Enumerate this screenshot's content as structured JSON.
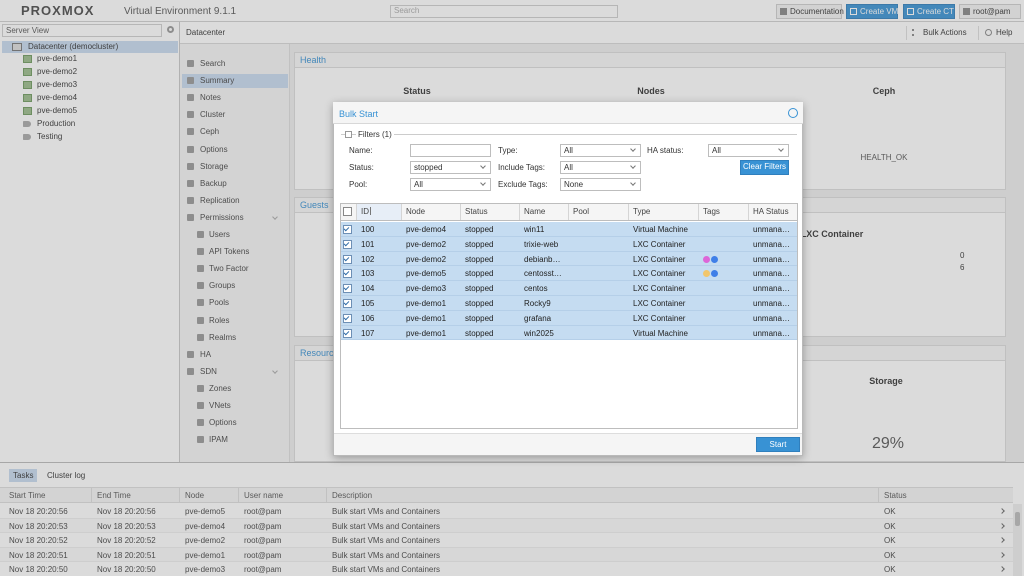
{
  "header": {
    "logo": "PROXMOX",
    "version": "Virtual Environment 9.1.1",
    "search_placeholder": "Search",
    "buttons": [
      "Documentation",
      "Create VM",
      "Create CT",
      "root@pam"
    ]
  },
  "tree": {
    "view": "Server View",
    "root": "Datacenter (democluster)",
    "nodes": [
      "pve-demo1",
      "pve-demo2",
      "pve-demo3",
      "pve-demo4",
      "pve-demo5"
    ],
    "pools": [
      "Production",
      "Testing"
    ]
  },
  "breadcrumb": {
    "title": "Datacenter",
    "actions": [
      "Bulk Actions",
      "Help"
    ]
  },
  "nav": {
    "items": [
      {
        "label": "Search"
      },
      {
        "label": "Summary",
        "selected": true
      },
      {
        "label": "Notes"
      },
      {
        "label": "Cluster"
      },
      {
        "label": "Ceph"
      },
      {
        "label": "Options"
      },
      {
        "label": "Storage"
      },
      {
        "label": "Backup"
      },
      {
        "label": "Replication"
      },
      {
        "label": "Permissions",
        "children": [
          "Users",
          "API Tokens",
          "Two Factor",
          "Groups",
          "Pools",
          "Roles",
          "Realms"
        ]
      },
      {
        "label": "HA"
      },
      {
        "label": "SDN",
        "children": [
          "Zones",
          "VNets",
          "Options",
          "IPAM"
        ]
      }
    ]
  },
  "dashboard": {
    "health": "Health",
    "status": "Status",
    "nodes": "Nodes",
    "ceph": "Ceph",
    "ceph_status": "HEALTH_OK",
    "guests": "Guests",
    "guest_type": "LXC Container",
    "counts": [
      0,
      6
    ],
    "resources": "Resources",
    "storage": "Storage",
    "storage_usage": "29%"
  },
  "dialog": {
    "title": "Bulk Start",
    "filters": {
      "legend": "Filters (1)",
      "columns": [
        [
          {
            "label": "Name:"
          },
          {
            "label": "Status:",
            "value": "stopped"
          },
          {
            "label": "Pool:",
            "value": "All"
          }
        ],
        [
          {
            "label": "Type:",
            "value": "All"
          },
          {
            "label": "Include Tags:",
            "value": "All"
          },
          {
            "label": "Exclude Tags:",
            "value": "None"
          }
        ],
        [
          {
            "label": "HA status:",
            "value": "All"
          }
        ]
      ],
      "clear": "Clear Filters"
    },
    "columns": [
      "ID",
      "Node",
      "Status",
      "Name",
      "Pool",
      "Type",
      "Tags",
      "HA Status"
    ],
    "rows": [
      {
        "id": 100,
        "node": "pve-demo4",
        "status": "stopped",
        "name": "win11",
        "type": "Virtual Machine",
        "ha": "unmana…"
      },
      {
        "id": 101,
        "node": "pve-demo2",
        "status": "stopped",
        "name": "trixie-web",
        "type": "LXC Container",
        "ha": "unmana…"
      },
      {
        "id": 102,
        "node": "pve-demo2",
        "status": "stopped",
        "name": "debianb…",
        "type": "LXC Container",
        "tags": [
          "#dd66d8",
          "#3f7fe8"
        ],
        "ha": "unmana…"
      },
      {
        "id": 103,
        "node": "pve-demo5",
        "status": "stopped",
        "name": "centosst…",
        "type": "LXC Container",
        "tags": [
          "#f2c66b",
          "#3f7fe8"
        ],
        "ha": "unmana…"
      },
      {
        "id": 104,
        "node": "pve-demo3",
        "status": "stopped",
        "name": "centos",
        "type": "LXC Container",
        "ha": "unmana…"
      },
      {
        "id": 105,
        "node": "pve-demo1",
        "status": "stopped",
        "name": "Rocky9",
        "type": "LXC Container",
        "ha": "unmana…"
      },
      {
        "id": 106,
        "node": "pve-demo1",
        "status": "stopped",
        "name": "grafana",
        "type": "LXC Container",
        "ha": "unmana…"
      },
      {
        "id": 107,
        "node": "pve-demo1",
        "status": "stopped",
        "name": "win2025",
        "type": "Virtual Machine",
        "ha": "unmana…"
      }
    ],
    "button": "Start"
  },
  "tasks": {
    "tabs": [
      "Tasks",
      "Cluster log"
    ],
    "columns": [
      "Start Time",
      "End Time",
      "Node",
      "User name",
      "Description",
      "Status"
    ],
    "rows": [
      [
        "Nov 18 20:20:56",
        "Nov 18 20:20:56",
        "pve-demo5",
        "root@pam",
        "Bulk start VMs and Containers",
        "OK"
      ],
      [
        "Nov 18 20:20:53",
        "Nov 18 20:20:53",
        "pve-demo4",
        "root@pam",
        "Bulk start VMs and Containers",
        "OK"
      ],
      [
        "Nov 18 20:20:52",
        "Nov 18 20:20:52",
        "pve-demo2",
        "root@pam",
        "Bulk start VMs and Containers",
        "OK"
      ],
      [
        "Nov 18 20:20:51",
        "Nov 18 20:20:51",
        "pve-demo1",
        "root@pam",
        "Bulk start VMs and Containers",
        "OK"
      ],
      [
        "Nov 18 20:20:50",
        "Nov 18 20:20:50",
        "pve-demo3",
        "root@pam",
        "Bulk start VMs and Containers",
        "OK"
      ]
    ]
  }
}
